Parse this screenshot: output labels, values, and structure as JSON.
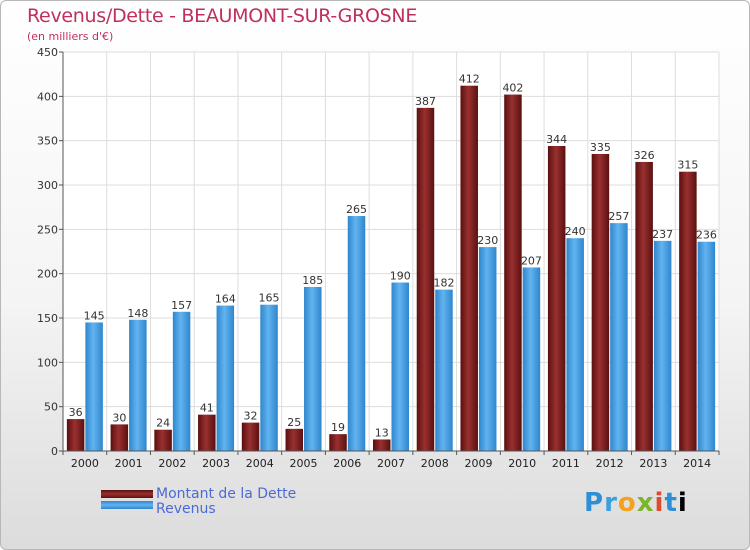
{
  "title": "Revenus/Dette - BEAUMONT-SUR-GROSNE",
  "subtitle": "(en milliers d'€)",
  "colors": {
    "dette": "#7a1a1a",
    "revenus": "#4aa3e8",
    "title": "#c0305a",
    "legend_text": "#4a6ad8"
  },
  "chart_data": {
    "type": "bar",
    "categories": [
      "2000",
      "2001",
      "2002",
      "2003",
      "2004",
      "2005",
      "2006",
      "2007",
      "2008",
      "2009",
      "2010",
      "2011",
      "2012",
      "2013",
      "2014"
    ],
    "series": [
      {
        "name": "Montant de la Dette",
        "values": [
          36,
          30,
          24,
          41,
          32,
          25,
          19,
          13,
          387,
          412,
          402,
          344,
          335,
          326,
          315
        ]
      },
      {
        "name": "Revenus",
        "values": [
          145,
          148,
          157,
          164,
          165,
          185,
          265,
          190,
          182,
          230,
          207,
          240,
          257,
          237,
          236
        ]
      }
    ],
    "ylim": [
      0,
      450
    ],
    "yticks": [
      0,
      50,
      100,
      150,
      200,
      250,
      300,
      350,
      400,
      450
    ],
    "grid": true,
    "legend": "bottom-left"
  },
  "logo_text": [
    "P",
    "r",
    "o",
    "x",
    "i",
    "t",
    "i"
  ]
}
